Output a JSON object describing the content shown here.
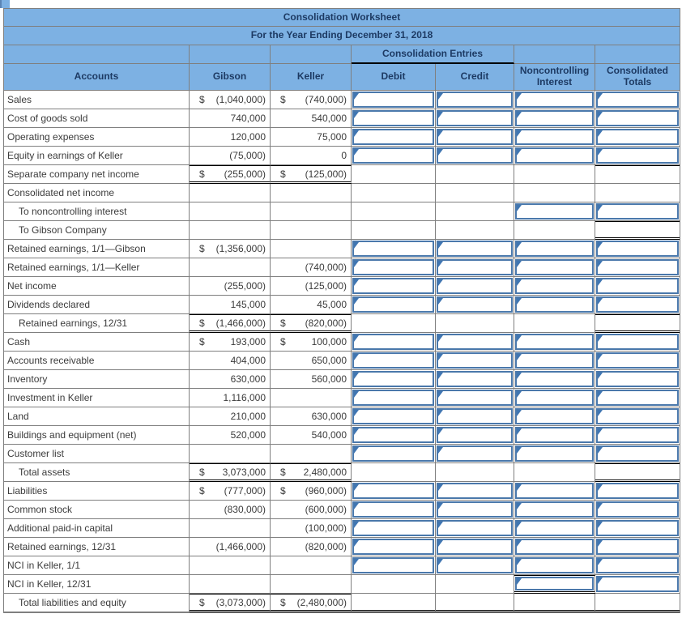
{
  "title": "Consolidation Worksheet",
  "subtitle": "For the Year Ending December 31, 2018",
  "header": {
    "accounts": "Accounts",
    "gibson": "Gibson",
    "keller": "Keller",
    "entries_group": "Consolidation Entries",
    "debit": "Debit",
    "credit": "Credit",
    "nci": "Noncontrolling Interest",
    "consolidated": "Consolidated Totals"
  },
  "colors": {
    "header_bg": "#7db1e3",
    "header_text": "#1d3a63",
    "grid": "#7f7f7f",
    "input_box_border": "#4a78ab",
    "input_flag": "#4076b2",
    "total_rule": "#000000"
  },
  "rows": [
    {
      "label": "Sales",
      "ind": 0,
      "gd": "$",
      "gv": "(1,040,000)",
      "kd": "$",
      "kv": "(740,000)",
      "amt": "n",
      "d": "b",
      "c": "b",
      "n": "b",
      "t": "b"
    },
    {
      "label": "Cost of goods sold",
      "ind": 0,
      "gd": "",
      "gv": "740,000",
      "kd": "",
      "kv": "540,000",
      "amt": "n",
      "d": "b",
      "c": "b",
      "n": "b",
      "t": "b"
    },
    {
      "label": "Operating expenses",
      "ind": 0,
      "gd": "",
      "gv": "120,000",
      "kd": "",
      "kv": "75,000",
      "amt": "n",
      "d": "b",
      "c": "b",
      "n": "b",
      "t": "b"
    },
    {
      "label": "Equity in earnings of Keller",
      "ind": 0,
      "gd": "",
      "gv": "(75,000)",
      "kd": "",
      "kv": "0",
      "amt": "n",
      "d": "b",
      "c": "b",
      "n": "b",
      "t": "b"
    },
    {
      "label": "Separate company net income",
      "ind": 0,
      "gd": "$",
      "gv": "(255,000)",
      "kd": "$",
      "kv": "(125,000)",
      "amt": "t",
      "d": "p",
      "c": "p",
      "n": "p",
      "t": "p-top"
    },
    {
      "label": "Consolidated net income",
      "ind": 0,
      "gd": "",
      "gv": "",
      "kd": "",
      "kv": "",
      "amt": "n",
      "d": "p",
      "c": "p",
      "n": "p",
      "t": "p"
    },
    {
      "label": "To noncontrolling interest",
      "ind": 1,
      "gd": "",
      "gv": "",
      "kd": "",
      "kv": "",
      "amt": "n",
      "d": "p",
      "c": "p",
      "n": "b",
      "t": "b"
    },
    {
      "label": "To Gibson Company",
      "ind": 1,
      "gd": "",
      "gv": "",
      "kd": "",
      "kv": "",
      "amt": "n",
      "d": "p",
      "c": "p",
      "n": "p",
      "t": "p-tot"
    },
    {
      "label": "Retained earnings, 1/1—Gibson",
      "ind": 0,
      "gd": "$",
      "gv": "(1,356,000)",
      "kd": "",
      "kv": "",
      "amt": "n",
      "d": "b",
      "c": "b",
      "n": "b",
      "t": "b"
    },
    {
      "label": "Retained earnings, 1/1—Keller",
      "ind": 0,
      "gd": "",
      "gv": "",
      "kd": "",
      "kv": "(740,000)",
      "amt": "n",
      "d": "b",
      "c": "b",
      "n": "b",
      "t": "b"
    },
    {
      "label": "Net income",
      "ind": 0,
      "gd": "",
      "gv": "(255,000)",
      "kd": "",
      "kv": "(125,000)",
      "amt": "n",
      "d": "b",
      "c": "b",
      "n": "b",
      "t": "b"
    },
    {
      "label": "Dividends declared",
      "ind": 0,
      "gd": "",
      "gv": "145,000",
      "kd": "",
      "kv": "45,000",
      "amt": "n",
      "d": "b",
      "c": "b",
      "n": "b",
      "t": "b"
    },
    {
      "label": "Retained earnings, 12/31",
      "ind": 1,
      "gd": "$",
      "gv": "(1,466,000)",
      "kd": "$",
      "kv": "(820,000)",
      "amt": "t",
      "d": "p",
      "c": "p",
      "n": "p",
      "t": "p-tot"
    },
    {
      "label": "Cash",
      "ind": 0,
      "gd": "$",
      "gv": "193,000",
      "kd": "$",
      "kv": "100,000",
      "amt": "n",
      "d": "b",
      "c": "b",
      "n": "b",
      "t": "b"
    },
    {
      "label": "Accounts receivable",
      "ind": 0,
      "gd": "",
      "gv": "404,000",
      "kd": "",
      "kv": "650,000",
      "amt": "n",
      "d": "b",
      "c": "b",
      "n": "b",
      "t": "b"
    },
    {
      "label": "Inventory",
      "ind": 0,
      "gd": "",
      "gv": "630,000",
      "kd": "",
      "kv": "560,000",
      "amt": "n",
      "d": "b",
      "c": "b",
      "n": "b",
      "t": "b"
    },
    {
      "label": "Investment in Keller",
      "ind": 0,
      "gd": "",
      "gv": "1,116,000",
      "kd": "",
      "kv": "",
      "amt": "n",
      "d": "b",
      "c": "b",
      "n": "b",
      "t": "b"
    },
    {
      "label": "Land",
      "ind": 0,
      "gd": "",
      "gv": "210,000",
      "kd": "",
      "kv": "630,000",
      "amt": "n",
      "d": "b",
      "c": "b",
      "n": "b",
      "t": "b"
    },
    {
      "label": "Buildings and equipment (net)",
      "ind": 0,
      "gd": "",
      "gv": "520,000",
      "kd": "",
      "kv": "540,000",
      "amt": "n",
      "d": "b",
      "c": "b",
      "n": "b",
      "t": "b"
    },
    {
      "label": "Customer list",
      "ind": 0,
      "gd": "",
      "gv": "",
      "kd": "",
      "kv": "",
      "amt": "n",
      "d": "b",
      "c": "b",
      "n": "b",
      "t": "b"
    },
    {
      "label": "Total assets",
      "ind": 1,
      "gd": "$",
      "gv": "3,073,000",
      "kd": "$",
      "kv": "2,480,000",
      "amt": "t",
      "d": "p",
      "c": "p",
      "n": "p",
      "t": "p-tot"
    },
    {
      "label": "Liabilities",
      "ind": 0,
      "gd": "$",
      "gv": "(777,000)",
      "kd": "$",
      "kv": "(960,000)",
      "amt": "n",
      "d": "b",
      "c": "b",
      "n": "b",
      "t": "b"
    },
    {
      "label": "Common stock",
      "ind": 0,
      "gd": "",
      "gv": "(830,000)",
      "kd": "",
      "kv": "(600,000)",
      "amt": "n",
      "d": "b",
      "c": "b",
      "n": "b",
      "t": "b"
    },
    {
      "label": "Additional paid-in capital",
      "ind": 0,
      "gd": "",
      "gv": "",
      "kd": "",
      "kv": "(100,000)",
      "amt": "n",
      "d": "b",
      "c": "b",
      "n": "b",
      "t": "b"
    },
    {
      "label": "Retained earnings, 12/31",
      "ind": 0,
      "gd": "",
      "gv": "(1,466,000)",
      "kd": "",
      "kv": "(820,000)",
      "amt": "n",
      "d": "b",
      "c": "b",
      "n": "b",
      "t": "b"
    },
    {
      "label": "NCI in Keller, 1/1",
      "ind": 0,
      "gd": "",
      "gv": "",
      "kd": "",
      "kv": "",
      "amt": "n",
      "d": "b",
      "c": "b",
      "n": "b",
      "t": "b"
    },
    {
      "label": "NCI in Keller, 12/31",
      "ind": 0,
      "gd": "",
      "gv": "",
      "kd": "",
      "kv": "",
      "amt": "n",
      "d": "p",
      "c": "p",
      "n": "b-tot",
      "t": "b"
    },
    {
      "label": "Total liabilities and equity",
      "ind": 1,
      "gd": "$",
      "gv": "(3,073,000)",
      "kd": "$",
      "kv": "(2,480,000)",
      "amt": "t",
      "d": "p-dbl",
      "c": "p-dbl",
      "n": "p-dbl",
      "t": "p-dbl"
    }
  ]
}
